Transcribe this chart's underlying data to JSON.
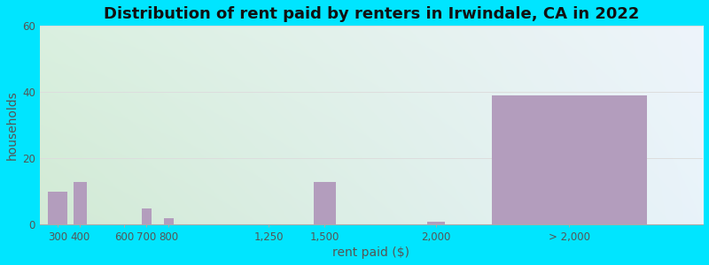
{
  "title": "Distribution of rent paid by renters in Irwindale, CA in 2022",
  "xlabel": "rent paid ($)",
  "ylabel": "households",
  "bar_labels": [
    "300",
    "400",
    "600",
    "700",
    "800",
    "1,250",
    "1,500",
    "2,000",
    "> 2,000"
  ],
  "bar_x": [
    300,
    400,
    600,
    700,
    800,
    1250,
    1500,
    2000,
    2600
  ],
  "bar_values": [
    10,
    13,
    0,
    5,
    2,
    0,
    13,
    1,
    39
  ],
  "bar_widths": [
    90,
    60,
    40,
    45,
    45,
    80,
    100,
    80,
    700
  ],
  "bar_color": "#b39dbd",
  "ylim": [
    0,
    60
  ],
  "yticks": [
    0,
    20,
    40,
    60
  ],
  "xlim": [
    220,
    3200
  ],
  "xtick_positions": [
    300,
    400,
    600,
    700,
    800,
    1250,
    1500,
    2000,
    2600
  ],
  "bg_top_left": "#d4edda",
  "bg_top_right": "#dce8f5",
  "bg_bottom_left": "#c8e6c9",
  "bg_bottom_right": "#e8f4fd",
  "outer_bg": "#00e5ff",
  "grid_color": "#dddddd",
  "title_fontsize": 13,
  "axis_label_fontsize": 10,
  "tick_fontsize": 8.5
}
